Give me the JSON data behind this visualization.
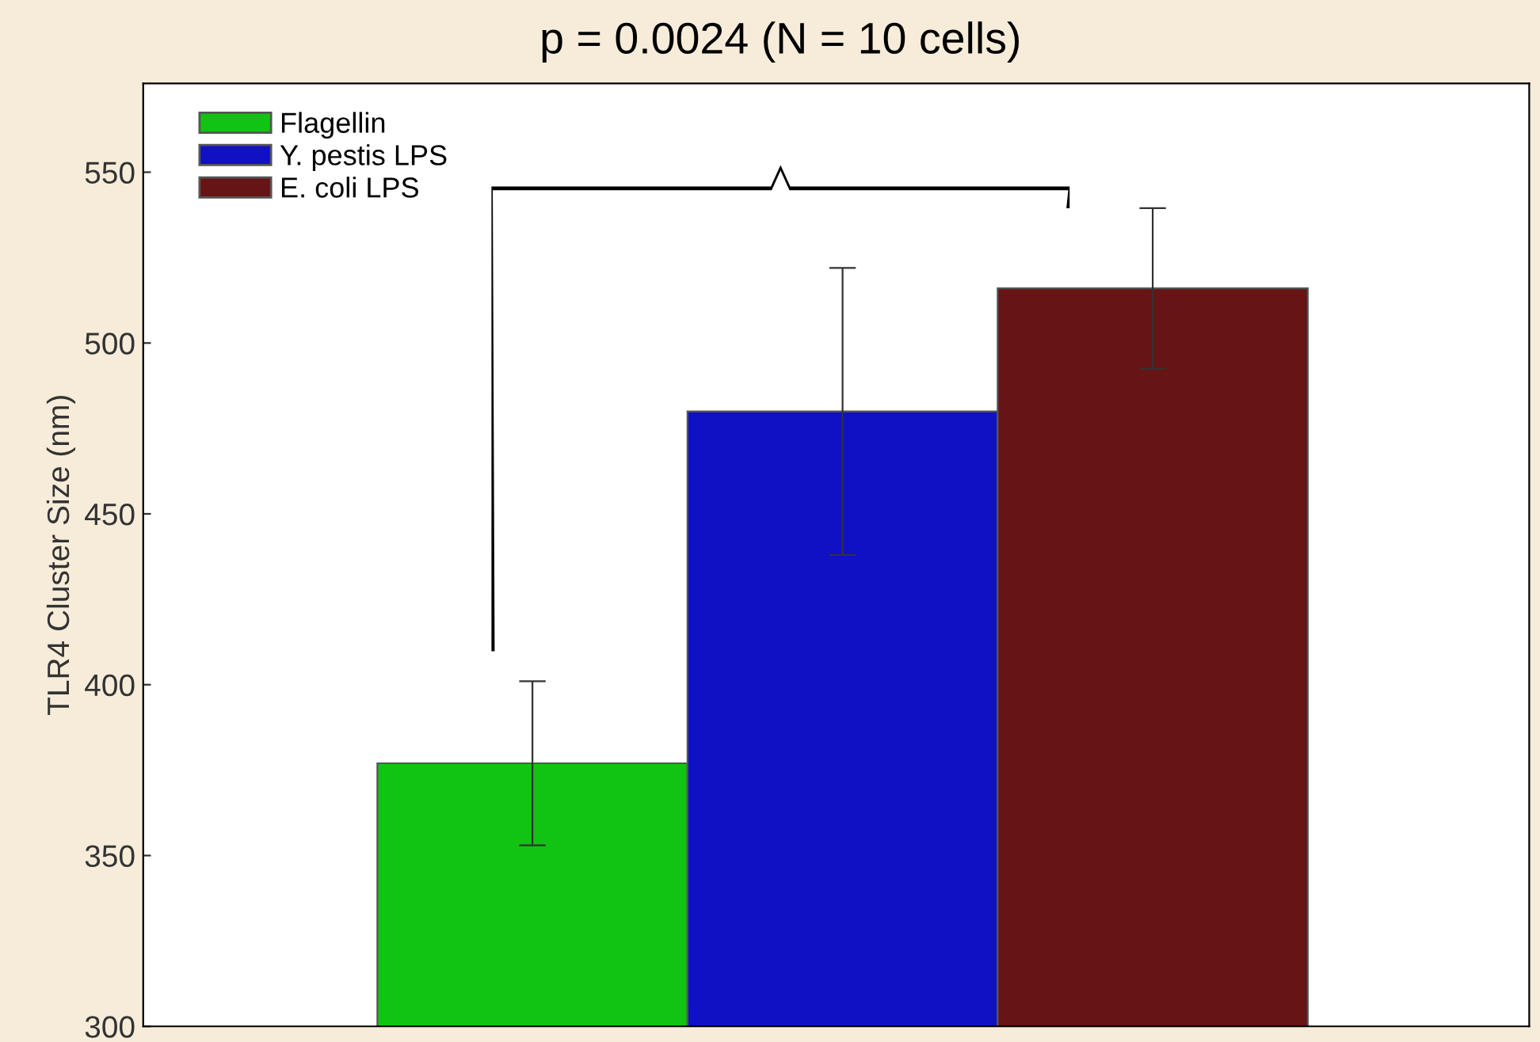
{
  "chart_data": {
    "type": "bar",
    "ylabel": "TLR4 Cluster Size (nm)",
    "categories": [
      null,
      null,
      null
    ],
    "series": [
      {
        "name": "Flagellin",
        "color": "#12c412",
        "values": [
          377,
          null,
          null
        ],
        "errors": [
          24,
          null,
          null
        ]
      },
      {
        "name": "Y. pestis LPS",
        "color": "#1010c4",
        "values": [
          null,
          480,
          null
        ],
        "errors": [
          null,
          42,
          null
        ]
      },
      {
        "name": "E. coli LPS",
        "color": "#661414",
        "values": [
          null,
          null,
          516
        ],
        "errors": [
          null,
          null,
          23.5
        ]
      }
    ],
    "ylim": [
      300,
      576
    ],
    "yticks": [
      300,
      350,
      400,
      450,
      500,
      550
    ],
    "legend": "top left",
    "grid": false,
    "annotations": [
      "p = 0.0024 (N = 10 cells)"
    ]
  }
}
